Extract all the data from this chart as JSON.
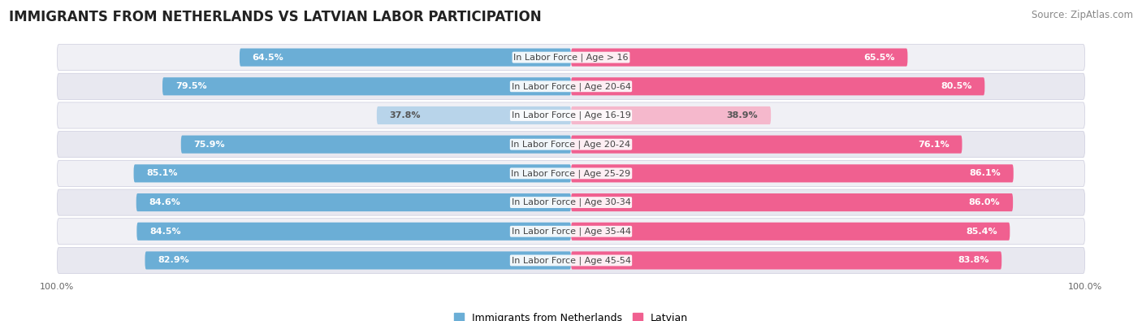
{
  "title": "IMMIGRANTS FROM NETHERLANDS VS LATVIAN LABOR PARTICIPATION",
  "source": "Source: ZipAtlas.com",
  "categories": [
    "In Labor Force | Age > 16",
    "In Labor Force | Age 20-64",
    "In Labor Force | Age 16-19",
    "In Labor Force | Age 20-24",
    "In Labor Force | Age 25-29",
    "In Labor Force | Age 30-34",
    "In Labor Force | Age 35-44",
    "In Labor Force | Age 45-54"
  ],
  "netherlands_values": [
    64.5,
    79.5,
    37.8,
    75.9,
    85.1,
    84.6,
    84.5,
    82.9
  ],
  "latvian_values": [
    65.5,
    80.5,
    38.9,
    76.1,
    86.1,
    86.0,
    85.4,
    83.8
  ],
  "netherlands_color": "#6baed6",
  "latvian_color": "#f06090",
  "netherlands_color_light": "#b8d4ea",
  "latvian_color_light": "#f5b8cc",
  "row_bg_color": "#f0f0f5",
  "row_alt_color": "#e8e8f0",
  "bg_color": "#ffffff",
  "bar_height": 0.62,
  "max_value": 100.0,
  "title_fontsize": 12,
  "label_fontsize": 8,
  "value_fontsize": 8,
  "legend_fontsize": 9,
  "source_fontsize": 8.5,
  "axis_label_fontsize": 8,
  "low_threshold": 50
}
